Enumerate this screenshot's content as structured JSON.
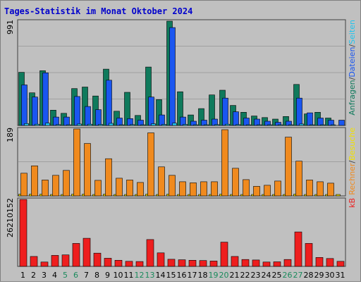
{
  "colors": {
    "background": "#c0c0c0",
    "title": "#0000cc",
    "gridline": "#a0a0a0",
    "panel_border": "#404040",
    "anfragen": "#0f7a5c",
    "dateien": "#1a56f0",
    "seiten": "#22c4ee",
    "besuche": "#f0e000",
    "rechner": "#f08a1e",
    "kb": "#ee1e1e",
    "weekend_label": "#1a8a5c"
  },
  "chart_data": {
    "type": "bar",
    "title": "Tages-Statistik im Monat Oktober 2024",
    "x": [
      "1",
      "2",
      "3",
      "4",
      "5",
      "6",
      "7",
      "8",
      "9",
      "10",
      "11",
      "12",
      "13",
      "14",
      "15",
      "16",
      "17",
      "18",
      "19",
      "20",
      "21",
      "22",
      "23",
      "24",
      "25",
      "26",
      "27",
      "28",
      "29",
      "30",
      "31"
    ],
    "weekend_days": [
      "5",
      "6",
      "12",
      "13",
      "19",
      "20",
      "26",
      "27"
    ],
    "panels": [
      {
        "name": "requests",
        "ymax_label": "991",
        "ylim": [
          0,
          991
        ],
        "legend": [
          {
            "text": "Anfragen",
            "color_key": "anfragen"
          },
          {
            "text": "/",
            "color_key": "panel_border"
          },
          {
            "text": "Dateien",
            "color_key": "dateien"
          },
          {
            "text": "/",
            "color_key": "panel_border"
          },
          {
            "text": "Seiten",
            "color_key": "seiten"
          }
        ],
        "series": [
          {
            "name": "Anfragen",
            "color_key": "anfragen",
            "values": [
              505,
              310,
              520,
              145,
              115,
              350,
              365,
              280,
              535,
              135,
              315,
              95,
              555,
              245,
              991,
              320,
              100,
              160,
              290,
              335,
              190,
              125,
              90,
              75,
              60,
              85,
              390,
              110,
              125,
              70,
              0
            ]
          },
          {
            "name": "Dateien",
            "color_key": "dateien",
            "values": [
              385,
              270,
              500,
              80,
              80,
              275,
              180,
              150,
              430,
              70,
              65,
              50,
              270,
              100,
              930,
              80,
              40,
              50,
              60,
              260,
              130,
              70,
              60,
              40,
              30,
              40,
              260,
              120,
              70,
              50,
              50
            ]
          },
          {
            "name": "Seiten",
            "color_key": "seiten",
            "values": [
              18,
              12,
              22,
              8,
              6,
              14,
              12,
              10,
              20,
              6,
              8,
              5,
              16,
              10,
              22,
              10,
              5,
              6,
              8,
              12,
              8,
              6,
              5,
              4,
              4,
              5,
              14,
              6,
              6,
              4,
              0
            ]
          }
        ]
      },
      {
        "name": "visits",
        "ymax_label": "189",
        "ylim": [
          0,
          189
        ],
        "legend": [
          {
            "text": "Rechner",
            "color_key": "rechner"
          },
          {
            "text": "/",
            "color_key": "panel_border"
          },
          {
            "text": "Besuche",
            "color_key": "besuche"
          }
        ],
        "series": [
          {
            "name": "Besuche",
            "color_key": "besuche",
            "values": [
              5,
              5,
              5,
              4,
              4,
              5,
              5,
              4,
              5,
              4,
              4,
              4,
              5,
              4,
              5,
              4,
              4,
              4,
              4,
              5,
              4,
              4,
              4,
              4,
              4,
              4,
              5,
              4,
              4,
              4,
              4
            ]
          },
          {
            "name": "Rechner",
            "color_key": "rechner",
            "values": [
              64,
              85,
              45,
              58,
              72,
              189,
              148,
              44,
              105,
              50,
              45,
              38,
              178,
              82,
              58,
              40,
              37,
              40,
              40,
              187,
              78,
              46,
              27,
              30,
              42,
              166,
              98,
              45,
              40,
              36,
              0
            ]
          }
        ]
      },
      {
        "name": "volume",
        "ymax_label": "26210152",
        "ylim": [
          0,
          26210152
        ],
        "legend": [
          {
            "text": "kB",
            "color_key": "kb"
          }
        ],
        "series": [
          {
            "name": "kB",
            "color_key": "kb",
            "values": [
              26210152,
              3900000,
              1700000,
              4300000,
              4500000,
              9000000,
              11000000,
              5200000,
              3200000,
              2400000,
              2000000,
              1900000,
              10500000,
              5300000,
              2800000,
              2600000,
              2400000,
              2300000,
              2100000,
              9500000,
              3900000,
              2700000,
              2500000,
              1700000,
              1800000,
              2700000,
              13500000,
              9000000,
              3500000,
              3100000,
              2000000
            ]
          }
        ]
      }
    ]
  }
}
